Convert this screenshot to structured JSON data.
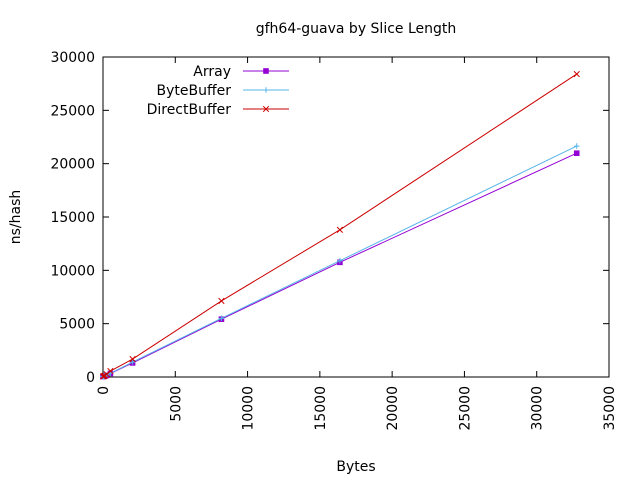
{
  "chart_data": {
    "type": "line",
    "title": "gfh64-guava by Slice Length",
    "xlabel": "Bytes",
    "ylabel": "ns/hash",
    "xlim": [
      0,
      35000
    ],
    "ylim": [
      0,
      30000
    ],
    "xticks": [
      0,
      5000,
      10000,
      15000,
      20000,
      25000,
      30000,
      35000
    ],
    "yticks": [
      0,
      5000,
      10000,
      15000,
      20000,
      25000,
      30000
    ],
    "grid": false,
    "legend_position": "top-left",
    "series": [
      {
        "name": "Array",
        "color": "#9400d3",
        "marker": "filled-square",
        "x": [
          0,
          64,
          128,
          256,
          512,
          2048,
          8192,
          16384,
          32768
        ],
        "y": [
          40,
          60,
          90,
          150,
          330,
          1320,
          5420,
          10750,
          20980
        ]
      },
      {
        "name": "ByteBuffer",
        "color": "#56b4e9",
        "marker": "plus",
        "x": [
          0,
          64,
          128,
          256,
          512,
          2048,
          8192,
          16384,
          32768
        ],
        "y": [
          40,
          60,
          95,
          160,
          350,
          1400,
          5500,
          10900,
          21650
        ]
      },
      {
        "name": "DirectBuffer",
        "color": "#cc0000",
        "marker": "cross",
        "x": [
          0,
          64,
          128,
          256,
          512,
          2048,
          8192,
          16384,
          32768
        ],
        "y": [
          60,
          90,
          130,
          260,
          560,
          1680,
          7130,
          13800,
          28400
        ]
      }
    ]
  }
}
